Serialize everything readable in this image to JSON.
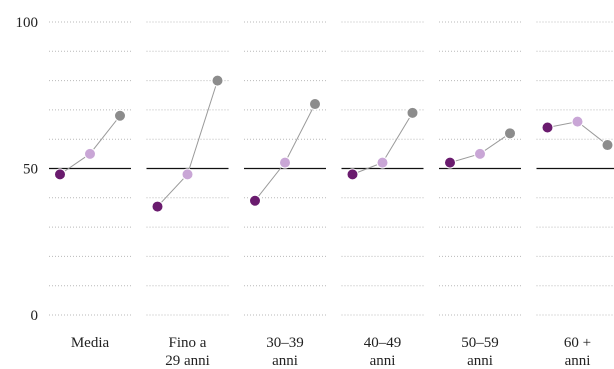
{
  "chart_data": {
    "type": "line",
    "title": "",
    "xlabel": "",
    "ylabel": "",
    "ylim": [
      0,
      100
    ],
    "yticks": [
      0,
      50,
      100
    ],
    "reference_line": 50,
    "grid": "dotted horizontal",
    "legend": "none",
    "categories": [
      [
        "Media"
      ],
      [
        "Fino a",
        "29 anni"
      ],
      [
        "30–39",
        "anni"
      ],
      [
        "40–49",
        "anni"
      ],
      [
        "50–59",
        "anni"
      ],
      [
        "60 +",
        "anni"
      ]
    ],
    "series": [
      {
        "color": "#6a1b6e",
        "values": [
          48,
          37,
          39,
          48,
          52,
          64
        ]
      },
      {
        "color": "#c9a6d6",
        "values": [
          55,
          48,
          52,
          52,
          55,
          66
        ]
      },
      {
        "color": "#8c8c8c",
        "values": [
          68,
          80,
          72,
          69,
          62,
          58
        ]
      }
    ],
    "colors": {
      "connector": "#9a9a9a",
      "reference_line": "#111111",
      "grid": "#b9b9b9"
    }
  }
}
